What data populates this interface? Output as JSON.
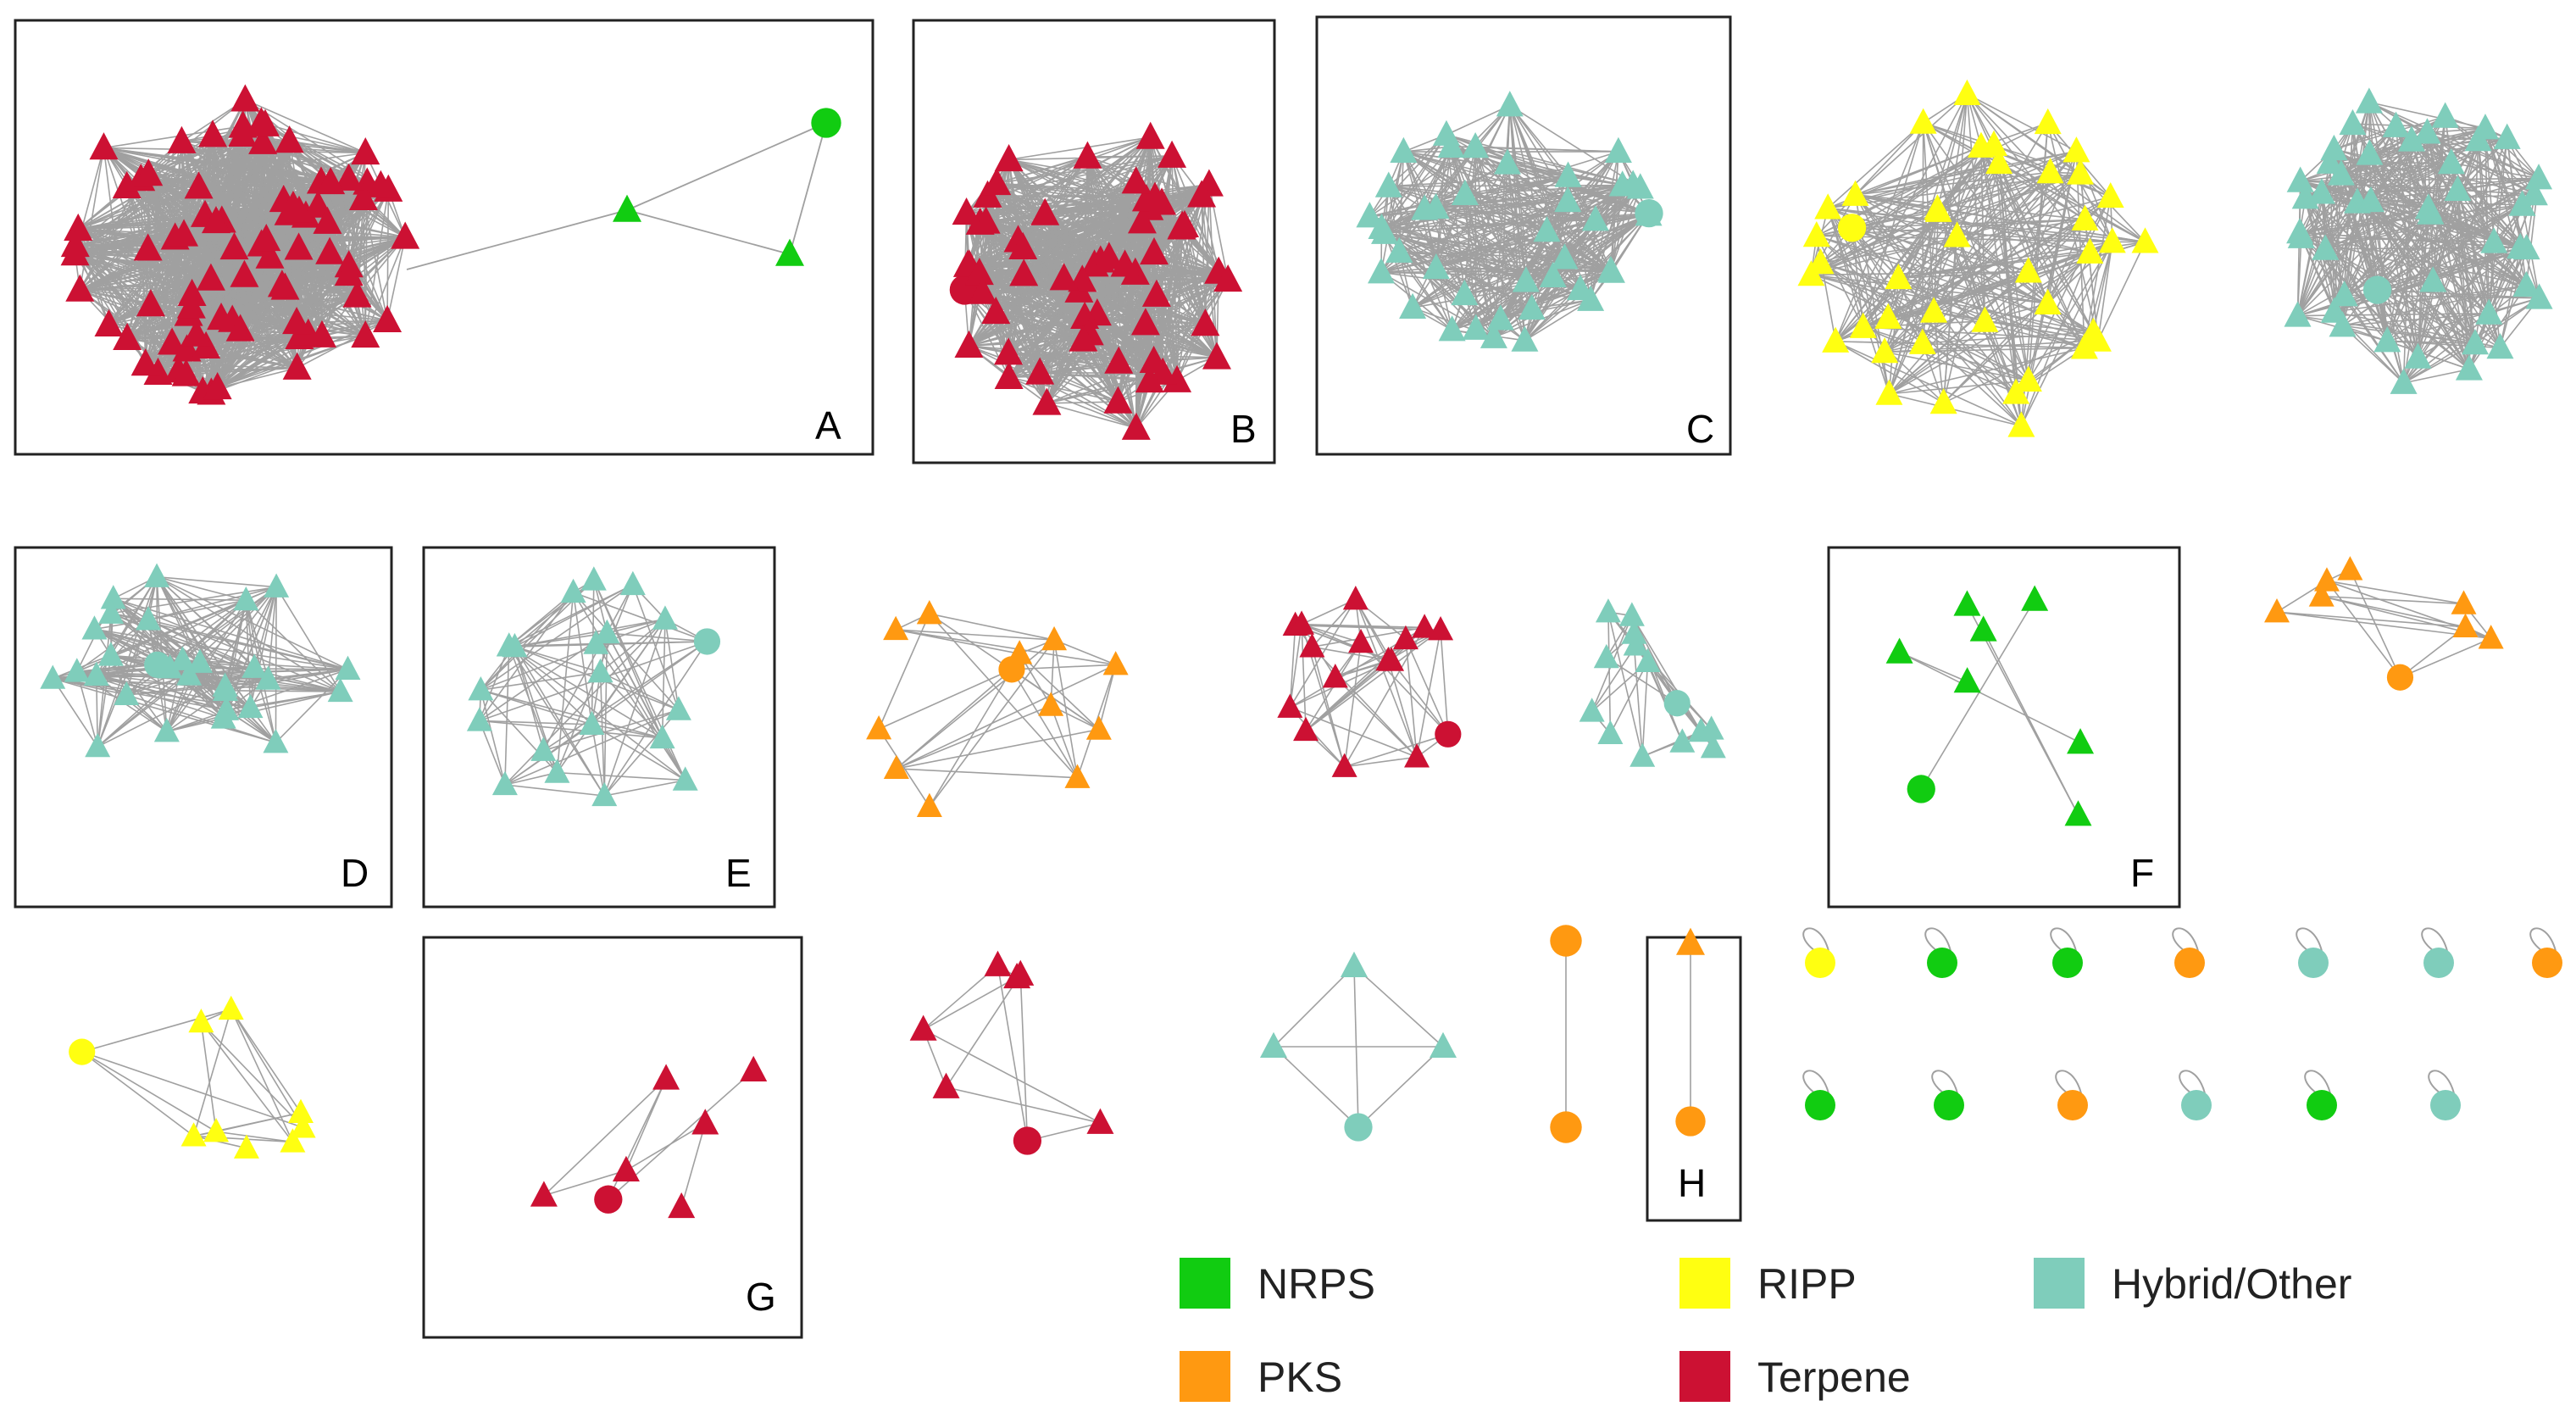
{
  "colors": {
    "NRPS": "#11cc11",
    "PKS": "#ff9911",
    "RIPP": "#ffff11",
    "Terpene": "#cc1133",
    "Hybrid/Other": "#7fcdbb",
    "edge": "#a0a0a0",
    "frame": "#222222"
  },
  "panels": [
    {
      "id": "A",
      "label": "A"
    },
    {
      "id": "B",
      "label": "B"
    },
    {
      "id": "C",
      "label": "C"
    },
    {
      "id": "D",
      "label": "D"
    },
    {
      "id": "E",
      "label": "E"
    },
    {
      "id": "F",
      "label": "F"
    },
    {
      "id": "G",
      "label": "G"
    },
    {
      "id": "H",
      "label": "H"
    }
  ],
  "legend": [
    {
      "class": "NRPS",
      "label": "NRPS"
    },
    {
      "class": "RIPP",
      "label": "RIPP"
    },
    {
      "class": "Hybrid/Other",
      "label": "Hybrid/Other"
    },
    {
      "class": "PKS",
      "label": "PKS"
    },
    {
      "class": "Terpene",
      "label": "Terpene"
    }
  ],
  "clusters": [
    {
      "id": "cluster-A-terpene",
      "class": "Terpene",
      "triangles": 80,
      "circles": 0,
      "panel": "A"
    },
    {
      "id": "cluster-A-nrps",
      "class": "NRPS",
      "triangles": 2,
      "circles": 1,
      "panel": "A"
    },
    {
      "id": "cluster-B-terpene",
      "class": "Terpene",
      "triangles": 60,
      "circles": 1,
      "panel": "B"
    },
    {
      "id": "cluster-C-hybrid",
      "class": "Hybrid/Other",
      "triangles": 40,
      "circles": 1,
      "panel": "C"
    },
    {
      "id": "cluster-ripp-large",
      "class": "RIPP",
      "triangles": 40,
      "circles": 1,
      "panel": null
    },
    {
      "id": "cluster-hybrid-large",
      "class": "Hybrid/Other",
      "triangles": 45,
      "circles": 1,
      "panel": null
    },
    {
      "id": "cluster-D-hybrid",
      "class": "Hybrid/Other",
      "triangles": 28,
      "circles": 1,
      "panel": "D"
    },
    {
      "id": "cluster-E-hybrid",
      "class": "Hybrid/Other",
      "triangles": 19,
      "circles": 1,
      "panel": "E"
    },
    {
      "id": "cluster-pks-1",
      "class": "PKS",
      "triangles": 11,
      "circles": 1,
      "panel": null
    },
    {
      "id": "cluster-terpene-ring",
      "class": "Terpene",
      "triangles": 15,
      "circles": 1,
      "panel": null
    },
    {
      "id": "cluster-hybrid-ring",
      "class": "Hybrid/Other",
      "triangles": 13,
      "circles": 1,
      "panel": null
    },
    {
      "id": "cluster-F-nrps",
      "class": "NRPS",
      "triangles": 7,
      "circles": 1,
      "panel": "F"
    },
    {
      "id": "cluster-pks-2",
      "class": "PKS",
      "triangles": 7,
      "circles": 1,
      "panel": null
    },
    {
      "id": "cluster-ripp-small",
      "class": "RIPP",
      "triangles": 8,
      "circles": 1,
      "panel": null
    },
    {
      "id": "cluster-G-terpene",
      "class": "Terpene",
      "triangles": 6,
      "circles": 1,
      "panel": "G"
    },
    {
      "id": "cluster-terpene-small",
      "class": "Terpene",
      "triangles": 6,
      "circles": 1,
      "panel": null
    },
    {
      "id": "cluster-hybrid-square",
      "class": "Hybrid/Other",
      "triangles": 3,
      "circles": 1,
      "panel": null
    },
    {
      "id": "cluster-pks-pair",
      "class": "PKS",
      "triangles": 0,
      "circles": 2,
      "panel": null
    },
    {
      "id": "cluster-H-pks",
      "class": "PKS",
      "triangles": 1,
      "circles": 1,
      "panel": "H"
    }
  ],
  "singletons": [
    {
      "class": "RIPP"
    },
    {
      "class": "NRPS"
    },
    {
      "class": "NRPS"
    },
    {
      "class": "PKS"
    },
    {
      "class": "Hybrid/Other"
    },
    {
      "class": "Hybrid/Other"
    },
    {
      "class": "PKS"
    },
    {
      "class": "NRPS"
    },
    {
      "class": "NRPS"
    },
    {
      "class": "PKS"
    },
    {
      "class": "Hybrid/Other"
    },
    {
      "class": "NRPS"
    },
    {
      "class": "Hybrid/Other"
    }
  ]
}
